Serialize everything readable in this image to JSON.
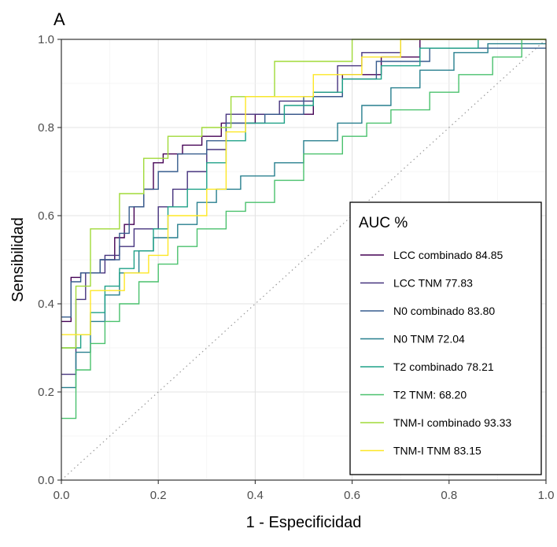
{
  "chart_data": {
    "type": "line",
    "panel_tag": "A",
    "xlabel": "1 - Especificidad",
    "ylabel": "Sensibilidad",
    "xlim": [
      0,
      1
    ],
    "ylim": [
      0,
      1
    ],
    "x_ticks": [
      "0.0",
      "0.2",
      "0.4",
      "0.6",
      "0.8",
      "1.0"
    ],
    "y_ticks": [
      "0.0",
      "0.2",
      "0.4",
      "0.6",
      "0.8",
      "1.0"
    ],
    "grid": true,
    "reference_line": "diagonal",
    "legend": {
      "title": "AUC %",
      "position": "right"
    },
    "series": [
      {
        "name": "LCC combinado 84.85",
        "color": "#440154",
        "points": [
          [
            0,
            0.36
          ],
          [
            0.02,
            0.36
          ],
          [
            0.02,
            0.46
          ],
          [
            0.04,
            0.46
          ],
          [
            0.04,
            0.47
          ],
          [
            0.08,
            0.47
          ],
          [
            0.08,
            0.5
          ],
          [
            0.11,
            0.5
          ],
          [
            0.11,
            0.55
          ],
          [
            0.13,
            0.55
          ],
          [
            0.13,
            0.58
          ],
          [
            0.15,
            0.58
          ],
          [
            0.15,
            0.62
          ],
          [
            0.17,
            0.62
          ],
          [
            0.17,
            0.66
          ],
          [
            0.19,
            0.66
          ],
          [
            0.19,
            0.72
          ],
          [
            0.21,
            0.72
          ],
          [
            0.21,
            0.74
          ],
          [
            0.25,
            0.74
          ],
          [
            0.25,
            0.76
          ],
          [
            0.29,
            0.76
          ],
          [
            0.29,
            0.78
          ],
          [
            0.33,
            0.78
          ],
          [
            0.33,
            0.81
          ],
          [
            0.4,
            0.81
          ],
          [
            0.4,
            0.83
          ],
          [
            0.52,
            0.83
          ],
          [
            0.52,
            0.87
          ],
          [
            0.58,
            0.87
          ],
          [
            0.58,
            0.92
          ],
          [
            0.66,
            0.92
          ],
          [
            0.66,
            0.96
          ],
          [
            0.74,
            0.96
          ],
          [
            0.74,
            1.0
          ],
          [
            1.0,
            1.0
          ]
        ]
      },
      {
        "name": "LCC TNM 77.83",
        "color": "#46337e",
        "points": [
          [
            0,
            0.24
          ],
          [
            0.03,
            0.24
          ],
          [
            0.03,
            0.41
          ],
          [
            0.05,
            0.41
          ],
          [
            0.05,
            0.47
          ],
          [
            0.09,
            0.47
          ],
          [
            0.09,
            0.51
          ],
          [
            0.12,
            0.51
          ],
          [
            0.12,
            0.53
          ],
          [
            0.15,
            0.53
          ],
          [
            0.15,
            0.57
          ],
          [
            0.2,
            0.57
          ],
          [
            0.2,
            0.62
          ],
          [
            0.23,
            0.62
          ],
          [
            0.23,
            0.66
          ],
          [
            0.26,
            0.66
          ],
          [
            0.26,
            0.7
          ],
          [
            0.3,
            0.7
          ],
          [
            0.3,
            0.75
          ],
          [
            0.34,
            0.75
          ],
          [
            0.34,
            0.83
          ],
          [
            0.45,
            0.83
          ],
          [
            0.45,
            0.86
          ],
          [
            0.52,
            0.86
          ],
          [
            0.52,
            0.88
          ],
          [
            0.57,
            0.88
          ],
          [
            0.57,
            0.94
          ],
          [
            0.62,
            0.94
          ],
          [
            0.62,
            0.97
          ],
          [
            0.7,
            0.97
          ],
          [
            0.7,
            1.0
          ],
          [
            1.0,
            1.0
          ]
        ]
      },
      {
        "name": "N0 combinado 83.80",
        "color": "#365c8d",
        "points": [
          [
            0,
            0.37
          ],
          [
            0.02,
            0.37
          ],
          [
            0.02,
            0.45
          ],
          [
            0.04,
            0.45
          ],
          [
            0.04,
            0.47
          ],
          [
            0.08,
            0.47
          ],
          [
            0.08,
            0.5
          ],
          [
            0.12,
            0.5
          ],
          [
            0.12,
            0.56
          ],
          [
            0.14,
            0.56
          ],
          [
            0.14,
            0.62
          ],
          [
            0.17,
            0.62
          ],
          [
            0.17,
            0.66
          ],
          [
            0.2,
            0.66
          ],
          [
            0.2,
            0.7
          ],
          [
            0.24,
            0.7
          ],
          [
            0.24,
            0.74
          ],
          [
            0.3,
            0.74
          ],
          [
            0.3,
            0.77
          ],
          [
            0.34,
            0.77
          ],
          [
            0.34,
            0.81
          ],
          [
            0.42,
            0.81
          ],
          [
            0.42,
            0.83
          ],
          [
            0.5,
            0.83
          ],
          [
            0.5,
            0.87
          ],
          [
            0.58,
            0.87
          ],
          [
            0.58,
            0.91
          ],
          [
            0.65,
            0.91
          ],
          [
            0.65,
            0.95
          ],
          [
            0.76,
            0.95
          ],
          [
            0.76,
            0.98
          ],
          [
            1.0,
            0.98
          ]
        ]
      },
      {
        "name": "N0 TNM 72.04",
        "color": "#277f8e",
        "points": [
          [
            0,
            0.21
          ],
          [
            0.03,
            0.21
          ],
          [
            0.03,
            0.29
          ],
          [
            0.06,
            0.29
          ],
          [
            0.06,
            0.36
          ],
          [
            0.09,
            0.36
          ],
          [
            0.09,
            0.42
          ],
          [
            0.12,
            0.42
          ],
          [
            0.12,
            0.47
          ],
          [
            0.16,
            0.47
          ],
          [
            0.16,
            0.52
          ],
          [
            0.19,
            0.52
          ],
          [
            0.19,
            0.55
          ],
          [
            0.24,
            0.55
          ],
          [
            0.24,
            0.58
          ],
          [
            0.28,
            0.58
          ],
          [
            0.28,
            0.63
          ],
          [
            0.32,
            0.63
          ],
          [
            0.32,
            0.66
          ],
          [
            0.37,
            0.66
          ],
          [
            0.37,
            0.69
          ],
          [
            0.44,
            0.69
          ],
          [
            0.44,
            0.72
          ],
          [
            0.5,
            0.72
          ],
          [
            0.5,
            0.77
          ],
          [
            0.57,
            0.77
          ],
          [
            0.57,
            0.81
          ],
          [
            0.62,
            0.81
          ],
          [
            0.62,
            0.85
          ],
          [
            0.68,
            0.85
          ],
          [
            0.68,
            0.89
          ],
          [
            0.74,
            0.89
          ],
          [
            0.74,
            0.93
          ],
          [
            0.81,
            0.93
          ],
          [
            0.81,
            0.97
          ],
          [
            0.88,
            0.97
          ],
          [
            0.88,
            0.99
          ],
          [
            1.0,
            0.99
          ]
        ]
      },
      {
        "name": "T2 combinado 78.21",
        "color": "#1fa187",
        "points": [
          [
            0,
            0.3
          ],
          [
            0.04,
            0.3
          ],
          [
            0.04,
            0.33
          ],
          [
            0.06,
            0.33
          ],
          [
            0.06,
            0.38
          ],
          [
            0.09,
            0.38
          ],
          [
            0.09,
            0.44
          ],
          [
            0.12,
            0.44
          ],
          [
            0.12,
            0.48
          ],
          [
            0.15,
            0.48
          ],
          [
            0.15,
            0.52
          ],
          [
            0.19,
            0.52
          ],
          [
            0.19,
            0.57
          ],
          [
            0.22,
            0.57
          ],
          [
            0.22,
            0.62
          ],
          [
            0.26,
            0.62
          ],
          [
            0.26,
            0.66
          ],
          [
            0.3,
            0.66
          ],
          [
            0.3,
            0.72
          ],
          [
            0.34,
            0.72
          ],
          [
            0.34,
            0.77
          ],
          [
            0.38,
            0.77
          ],
          [
            0.38,
            0.81
          ],
          [
            0.46,
            0.81
          ],
          [
            0.46,
            0.85
          ],
          [
            0.52,
            0.85
          ],
          [
            0.52,
            0.88
          ],
          [
            0.58,
            0.88
          ],
          [
            0.58,
            0.91
          ],
          [
            0.66,
            0.91
          ],
          [
            0.66,
            0.94
          ],
          [
            0.74,
            0.94
          ],
          [
            0.74,
            0.98
          ],
          [
            0.86,
            0.98
          ],
          [
            0.86,
            1.0
          ],
          [
            1.0,
            1.0
          ]
        ]
      },
      {
        "name": "T2 TNM: 68.20",
        "color": "#4ac16d",
        "points": [
          [
            0,
            0.14
          ],
          [
            0.03,
            0.14
          ],
          [
            0.03,
            0.25
          ],
          [
            0.06,
            0.25
          ],
          [
            0.06,
            0.31
          ],
          [
            0.09,
            0.31
          ],
          [
            0.09,
            0.36
          ],
          [
            0.12,
            0.36
          ],
          [
            0.12,
            0.4
          ],
          [
            0.16,
            0.4
          ],
          [
            0.16,
            0.45
          ],
          [
            0.2,
            0.45
          ],
          [
            0.2,
            0.49
          ],
          [
            0.24,
            0.49
          ],
          [
            0.24,
            0.53
          ],
          [
            0.28,
            0.53
          ],
          [
            0.28,
            0.57
          ],
          [
            0.34,
            0.57
          ],
          [
            0.34,
            0.61
          ],
          [
            0.38,
            0.61
          ],
          [
            0.38,
            0.63
          ],
          [
            0.44,
            0.63
          ],
          [
            0.44,
            0.68
          ],
          [
            0.5,
            0.68
          ],
          [
            0.5,
            0.74
          ],
          [
            0.58,
            0.74
          ],
          [
            0.58,
            0.78
          ],
          [
            0.63,
            0.78
          ],
          [
            0.63,
            0.81
          ],
          [
            0.68,
            0.81
          ],
          [
            0.68,
            0.84
          ],
          [
            0.76,
            0.84
          ],
          [
            0.76,
            0.88
          ],
          [
            0.82,
            0.88
          ],
          [
            0.82,
            0.92
          ],
          [
            0.89,
            0.92
          ],
          [
            0.89,
            0.96
          ],
          [
            0.95,
            0.96
          ],
          [
            0.95,
            1.0
          ],
          [
            1.0,
            1.0
          ]
        ]
      },
      {
        "name": "TNM-I combinado 93.33",
        "color": "#a0da39",
        "points": [
          [
            0,
            0.3
          ],
          [
            0.03,
            0.3
          ],
          [
            0.03,
            0.44
          ],
          [
            0.06,
            0.44
          ],
          [
            0.06,
            0.57
          ],
          [
            0.12,
            0.57
          ],
          [
            0.12,
            0.65
          ],
          [
            0.17,
            0.65
          ],
          [
            0.17,
            0.73
          ],
          [
            0.22,
            0.73
          ],
          [
            0.22,
            0.78
          ],
          [
            0.29,
            0.78
          ],
          [
            0.29,
            0.8
          ],
          [
            0.35,
            0.8
          ],
          [
            0.35,
            0.87
          ],
          [
            0.44,
            0.87
          ],
          [
            0.44,
            0.95
          ],
          [
            0.6,
            0.95
          ],
          [
            0.6,
            1.0
          ],
          [
            1.0,
            1.0
          ]
        ]
      },
      {
        "name": "TNM-I TNM 83.15",
        "color": "#fde725",
        "points": [
          [
            0,
            0.33
          ],
          [
            0.06,
            0.33
          ],
          [
            0.06,
            0.43
          ],
          [
            0.13,
            0.43
          ],
          [
            0.13,
            0.47
          ],
          [
            0.18,
            0.47
          ],
          [
            0.18,
            0.51
          ],
          [
            0.22,
            0.51
          ],
          [
            0.22,
            0.6
          ],
          [
            0.3,
            0.6
          ],
          [
            0.3,
            0.66
          ],
          [
            0.34,
            0.66
          ],
          [
            0.34,
            0.79
          ],
          [
            0.38,
            0.79
          ],
          [
            0.38,
            0.87
          ],
          [
            0.52,
            0.87
          ],
          [
            0.52,
            0.92
          ],
          [
            0.62,
            0.92
          ],
          [
            0.62,
            0.96
          ],
          [
            0.7,
            0.96
          ],
          [
            0.7,
            1.0
          ],
          [
            1.0,
            1.0
          ]
        ]
      }
    ]
  }
}
